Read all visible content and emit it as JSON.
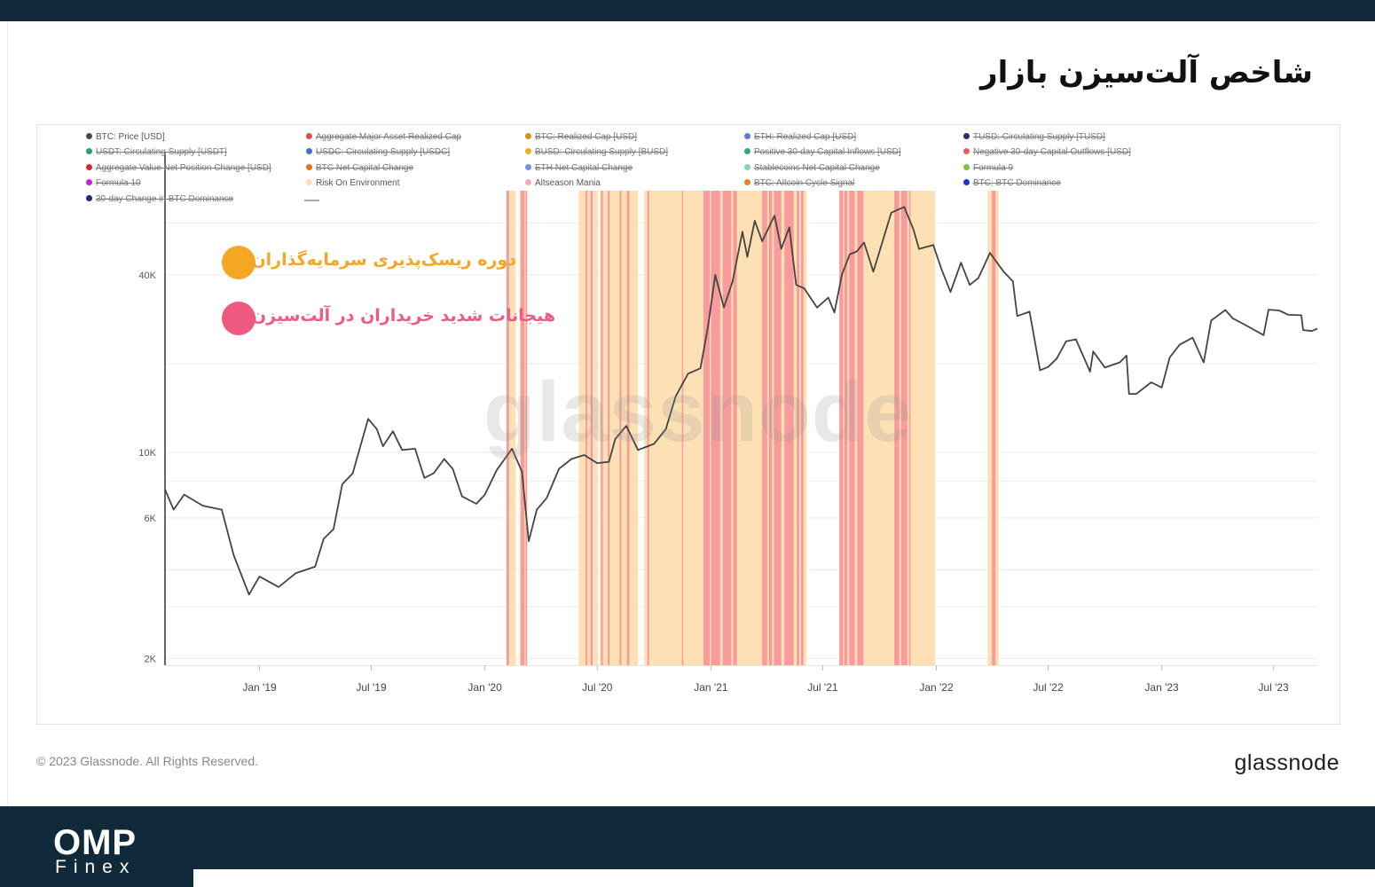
{
  "page_title": "شاخص آلت‌سیزن بازار",
  "annotations": [
    {
      "label": "دوره ریسک‌پذیری سرمایه‌گذاران",
      "color": "#f5a623"
    },
    {
      "label": "هیجانات شدید خریداران در آلت‌سیزن",
      "color": "#ef5b80"
    }
  ],
  "legend": [
    {
      "label": "BTC: Price [USD]",
      "color": "#4d4d4d",
      "active": true
    },
    {
      "label": "Aggregate Major Asset Realized Cap",
      "color": "#e04b4b",
      "active": false
    },
    {
      "label": "BTC: Realized Cap [USD]",
      "color": "#e08a1e",
      "active": false
    },
    {
      "label": "ETH: Realized Cap [USD]",
      "color": "#5b7fd6",
      "active": false
    },
    {
      "label": "TUSD: Circulating Supply [TUSD]",
      "color": "#2b2d6e",
      "active": false
    },
    {
      "label": "USDT: Circulating Supply [USDT]",
      "color": "#2f9e6e",
      "active": false
    },
    {
      "label": "USDC: Circulating Supply [USDC]",
      "color": "#3f6fc4",
      "active": false
    },
    {
      "label": "BUSD: Circulating Supply [BUSD]",
      "color": "#e0b21e",
      "active": false
    },
    {
      "label": "Positive 30-day Capital Inflows [USD]",
      "color": "#2fae6a",
      "active": false
    },
    {
      "label": "Negative 30-day Capital Outflows [USD]",
      "color": "#e06060",
      "active": false
    },
    {
      "label": "Aggregate Value Net Position Change [USD]",
      "color": "#d8243b",
      "active": false
    },
    {
      "label": "BTC Net Capital Change",
      "color": "#e0731e",
      "active": false
    },
    {
      "label": "ETH Net Capital Change",
      "color": "#7a8de0",
      "active": false
    },
    {
      "label": "Stablecoins Net Capital Change",
      "color": "#7ed8a8",
      "active": false
    },
    {
      "label": "Formula 9",
      "color": "#7dc43a",
      "active": false
    },
    {
      "label": "Formula 10",
      "color": "#c51fd0",
      "active": false
    },
    {
      "label": "Risk On Environment",
      "color": "#fde0b4",
      "active": true
    },
    {
      "label": "Altseason Mania",
      "color": "#f6a8bd",
      "active": true
    },
    {
      "label": "BTC: Altcoin Cycle Signal",
      "color": "#e0851e",
      "active": false
    },
    {
      "label": "BTC: BTC Dominance",
      "color": "#2530d8",
      "active": false
    },
    {
      "label": "30-day Change in BTC Dominance",
      "color": "#1e2a7a",
      "active": false
    }
  ],
  "watermark": "glassnode",
  "footer": {
    "copyright": "© 2023 Glassnode. All Rights Reserved.",
    "logo": "glassnode"
  },
  "brand": {
    "line1": "OMP",
    "line2": "Finex"
  },
  "chart_data": {
    "type": "line",
    "title": "",
    "xlabel": "",
    "ylabel": "",
    "y_scale": "log",
    "y_ticks": [
      {
        "value": 2000,
        "label": "2K"
      },
      {
        "value": 6000,
        "label": "6K"
      },
      {
        "value": 10000,
        "label": "10K"
      },
      {
        "value": 40000,
        "label": "40K"
      }
    ],
    "x_ticks": [
      "Jan '19",
      "Jul '19",
      "Jan '20",
      "Jul '20",
      "Jan '21",
      "Jul '21",
      "Jan '22",
      "Jul '22",
      "Jan '23",
      "Jul '23"
    ],
    "x_range": [
      "2018-08-01",
      "2023-09-10"
    ],
    "colors": {
      "risk_on": "#fde0b4",
      "mania": "#f99a9c",
      "price": "#444444",
      "grid": "#ebebeb"
    },
    "series": [
      {
        "name": "BTC: Price [USD]",
        "points": [
          [
            "2018-08-01",
            7500
          ],
          [
            "2018-08-15",
            6400
          ],
          [
            "2018-09-01",
            7200
          ],
          [
            "2018-10-01",
            6600
          ],
          [
            "2018-11-01",
            6400
          ],
          [
            "2018-11-20",
            4500
          ],
          [
            "2018-12-15",
            3300
          ],
          [
            "2019-01-01",
            3800
          ],
          [
            "2019-02-01",
            3500
          ],
          [
            "2019-03-01",
            3900
          ],
          [
            "2019-04-01",
            4100
          ],
          [
            "2019-04-15",
            5100
          ],
          [
            "2019-05-01",
            5500
          ],
          [
            "2019-05-15",
            7800
          ],
          [
            "2019-06-01",
            8500
          ],
          [
            "2019-06-26",
            13000
          ],
          [
            "2019-07-10",
            12000
          ],
          [
            "2019-07-20",
            10500
          ],
          [
            "2019-08-05",
            11800
          ],
          [
            "2019-08-20",
            10200
          ],
          [
            "2019-09-10",
            10300
          ],
          [
            "2019-09-25",
            8200
          ],
          [
            "2019-10-10",
            8500
          ],
          [
            "2019-10-27",
            9500
          ],
          [
            "2019-11-10",
            8800
          ],
          [
            "2019-11-25",
            7100
          ],
          [
            "2019-12-18",
            6700
          ],
          [
            "2020-01-01",
            7200
          ],
          [
            "2020-01-20",
            8700
          ],
          [
            "2020-02-14",
            10300
          ],
          [
            "2020-03-01",
            8600
          ],
          [
            "2020-03-12",
            5000
          ],
          [
            "2020-03-25",
            6400
          ],
          [
            "2020-04-10",
            7000
          ],
          [
            "2020-04-30",
            8800
          ],
          [
            "2020-05-20",
            9500
          ],
          [
            "2020-06-10",
            9800
          ],
          [
            "2020-07-01",
            9200
          ],
          [
            "2020-07-20",
            9300
          ],
          [
            "2020-07-30",
            11100
          ],
          [
            "2020-08-17",
            12300
          ],
          [
            "2020-09-05",
            10200
          ],
          [
            "2020-10-01",
            10700
          ],
          [
            "2020-10-20",
            12000
          ],
          [
            "2020-11-05",
            15500
          ],
          [
            "2020-11-25",
            18500
          ],
          [
            "2020-12-15",
            19300
          ],
          [
            "2020-12-27",
            26500
          ],
          [
            "2021-01-08",
            40000
          ],
          [
            "2021-01-22",
            31000
          ],
          [
            "2021-02-05",
            38000
          ],
          [
            "2021-02-21",
            56000
          ],
          [
            "2021-03-01",
            46000
          ],
          [
            "2021-03-13",
            61000
          ],
          [
            "2021-03-25",
            52000
          ],
          [
            "2021-04-14",
            63500
          ],
          [
            "2021-04-25",
            49000
          ],
          [
            "2021-05-08",
            58000
          ],
          [
            "2021-05-19",
            37000
          ],
          [
            "2021-06-01",
            36000
          ],
          [
            "2021-06-22",
            31000
          ],
          [
            "2021-07-10",
            33500
          ],
          [
            "2021-07-20",
            29800
          ],
          [
            "2021-08-01",
            40000
          ],
          [
            "2021-08-14",
            47000
          ],
          [
            "2021-08-25",
            48000
          ],
          [
            "2021-09-06",
            51500
          ],
          [
            "2021-09-21",
            41000
          ],
          [
            "2021-10-01",
            48000
          ],
          [
            "2021-10-20",
            65000
          ],
          [
            "2021-11-10",
            68000
          ],
          [
            "2021-11-25",
            57000
          ],
          [
            "2021-12-04",
            49000
          ],
          [
            "2021-12-27",
            50500
          ],
          [
            "2022-01-10",
            41500
          ],
          [
            "2022-01-24",
            35000
          ],
          [
            "2022-02-10",
            44000
          ],
          [
            "2022-02-24",
            37000
          ],
          [
            "2022-03-10",
            39000
          ],
          [
            "2022-03-29",
            47500
          ],
          [
            "2022-04-20",
            41000
          ],
          [
            "2022-05-05",
            38000
          ],
          [
            "2022-05-12",
            29000
          ],
          [
            "2022-06-01",
            30000
          ],
          [
            "2022-06-18",
            19000
          ],
          [
            "2022-07-01",
            19500
          ],
          [
            "2022-07-15",
            20800
          ],
          [
            "2022-07-30",
            23800
          ],
          [
            "2022-08-15",
            24200
          ],
          [
            "2022-09-07",
            18800
          ],
          [
            "2022-09-12",
            22000
          ],
          [
            "2022-10-01",
            19400
          ],
          [
            "2022-10-25",
            20200
          ],
          [
            "2022-11-05",
            21300
          ],
          [
            "2022-11-09",
            15800
          ],
          [
            "2022-11-21",
            15800
          ],
          [
            "2022-12-15",
            17300
          ],
          [
            "2023-01-01",
            16600
          ],
          [
            "2023-01-14",
            21000
          ],
          [
            "2023-01-30",
            23200
          ],
          [
            "2023-02-20",
            24500
          ],
          [
            "2023-03-10",
            20200
          ],
          [
            "2023-03-22",
            28000
          ],
          [
            "2023-04-14",
            30400
          ],
          [
            "2023-04-26",
            28500
          ],
          [
            "2023-05-10",
            27500
          ],
          [
            "2023-06-15",
            25000
          ],
          [
            "2023-06-23",
            30500
          ],
          [
            "2023-07-10",
            30300
          ],
          [
            "2023-07-25",
            29300
          ],
          [
            "2023-08-15",
            29200
          ],
          [
            "2023-08-18",
            26000
          ],
          [
            "2023-09-01",
            25800
          ],
          [
            "2023-09-10",
            26300
          ]
        ]
      },
      {
        "name": "Risk On Environment",
        "periods": [
          [
            "2020-02-05",
            "2020-02-20"
          ],
          [
            "2020-02-26",
            "2020-03-10"
          ],
          [
            "2020-06-01",
            "2020-06-20"
          ],
          [
            "2020-06-25",
            "2020-07-02"
          ],
          [
            "2020-07-05",
            "2020-09-05"
          ],
          [
            "2020-09-15",
            "2021-06-05"
          ],
          [
            "2021-07-28",
            "2021-12-30"
          ],
          [
            "2022-03-25",
            "2022-04-12"
          ]
        ]
      },
      {
        "name": "Altseason Mania",
        "periods": [
          [
            "2020-02-05",
            "2020-02-09"
          ],
          [
            "2020-02-28",
            "2020-03-05"
          ],
          [
            "2020-03-07",
            "2020-03-09"
          ],
          [
            "2020-06-12",
            "2020-06-15"
          ],
          [
            "2020-06-20",
            "2020-06-24"
          ],
          [
            "2020-07-07",
            "2020-07-10"
          ],
          [
            "2020-07-18",
            "2020-07-21"
          ],
          [
            "2020-08-06",
            "2020-08-09"
          ],
          [
            "2020-08-18",
            "2020-08-22"
          ],
          [
            "2020-09-20",
            "2020-09-23"
          ],
          [
            "2020-11-15",
            "2020-11-17"
          ],
          [
            "2020-12-20",
            "2020-12-30"
          ],
          [
            "2021-01-01",
            "2021-01-16"
          ],
          [
            "2021-01-20",
            "2021-02-03"
          ],
          [
            "2021-02-06",
            "2021-02-12"
          ],
          [
            "2021-03-25",
            "2021-04-02"
          ],
          [
            "2021-04-05",
            "2021-04-10"
          ],
          [
            "2021-04-13",
            "2021-04-25"
          ],
          [
            "2021-04-30",
            "2021-05-15"
          ],
          [
            "2021-05-20",
            "2021-05-24"
          ],
          [
            "2021-05-27",
            "2021-05-31"
          ],
          [
            "2021-07-28",
            "2021-08-03"
          ],
          [
            "2021-08-05",
            "2021-08-10"
          ],
          [
            "2021-08-13",
            "2021-08-22"
          ],
          [
            "2021-08-26",
            "2021-09-05"
          ],
          [
            "2021-10-25",
            "2021-11-02"
          ],
          [
            "2021-11-05",
            "2021-11-15"
          ],
          [
            "2021-11-18",
            "2021-11-20"
          ],
          [
            "2022-04-01",
            "2022-04-07"
          ]
        ]
      }
    ]
  }
}
